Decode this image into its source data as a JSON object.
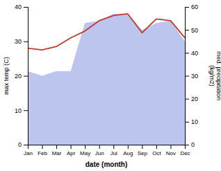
{
  "chart_data": {
    "type": "line",
    "categories": [
      "Jan",
      "Feb",
      "Mar",
      "Apr",
      "May",
      "Jun",
      "Jul",
      "Aug",
      "Sep",
      "Oct",
      "Nov",
      "Dec"
    ],
    "series": [
      {
        "type": "area",
        "color": "#bcc5ed",
        "axis": "y2",
        "values": [
          32,
          30,
          32,
          32,
          53,
          54,
          57,
          57,
          50,
          53,
          54,
          45
        ]
      },
      {
        "type": "line",
        "color": "#c0392b",
        "values": [
          28,
          27.5,
          28.5,
          31,
          33,
          36,
          37.5,
          38,
          32.5,
          36.5,
          36,
          31
        ]
      }
    ],
    "xlabel": "date (month)",
    "ylabel": "max temp (C)",
    "y2label": "med. precipitation\n(kg/m2)",
    "ylim": [
      0,
      40
    ],
    "yticks": [
      0,
      10,
      20,
      30,
      40
    ],
    "y2lim": [
      0,
      60
    ],
    "y2ticks": [
      0,
      10,
      20,
      30,
      40,
      50,
      60
    ],
    "grid": false
  }
}
